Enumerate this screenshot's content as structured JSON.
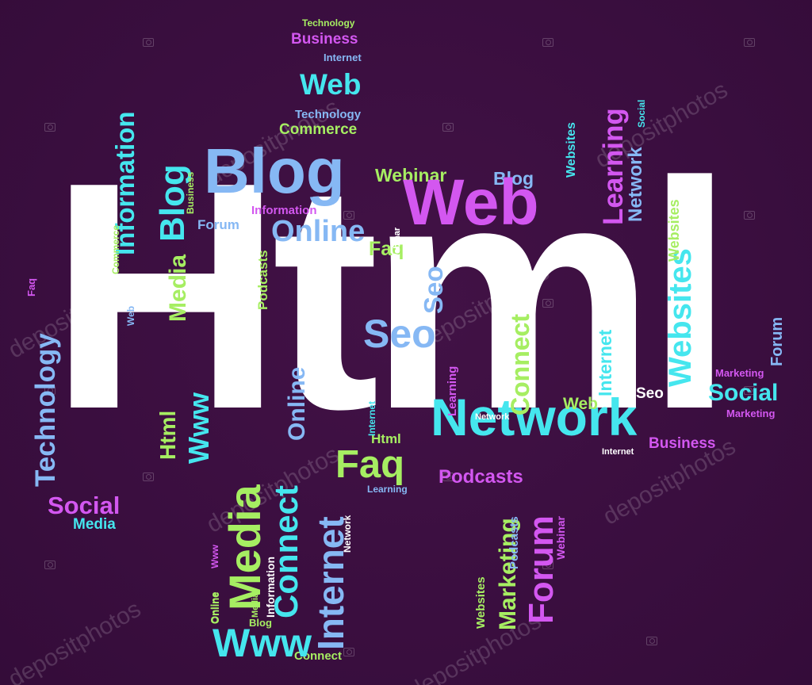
{
  "background_color": "#3a0e3f",
  "palette": {
    "white": "#ffffff",
    "cyan": "#45e6ee",
    "lightblue": "#86b8f4",
    "green": "#a6ee62",
    "magenta": "#d357f0",
    "lavender": "#c6a4ee"
  },
  "main_word": "Html",
  "words": {
    "w1": "Technology",
    "w2": "Business",
    "w3": "Internet",
    "w4": "Web",
    "w5": "Technology",
    "w6": "Commerce",
    "w7": "Blog",
    "w8": "Webinar",
    "w9": "Blog",
    "w10": "Web",
    "w11": "Forum",
    "w12": "Information",
    "w13": "Online",
    "w14": "Faq",
    "w15": "Seo",
    "w16": "Network",
    "w17": "Html",
    "w18": "Faq",
    "w19": "Podcasts",
    "w20": "Learning",
    "w21": "Business",
    "w22": "Internet",
    "w23": "Seo",
    "w24": "Web",
    "w25": "Network",
    "w26": "Social",
    "w27": "Marketing",
    "w28": "Marketing",
    "w29": "Social",
    "w30": "Media",
    "w31": "Blog",
    "w32": "Connect",
    "w33": "Www",
    "w34": "Information",
    "w35": "Blog",
    "w36": "Web",
    "w37": "Commerce",
    "w38": "Business",
    "w39": "Media",
    "w40": "Technology",
    "w41": "Faq",
    "w42": "Html",
    "w43": "Www",
    "w44": "Podcasts",
    "w45": "Online",
    "w46": "Seo",
    "w47": "Connect",
    "w48": "Learning",
    "w49": "Online",
    "w50": "Media",
    "w51": "Connect",
    "w52": "Internet",
    "w53": "Www",
    "w54": "Media",
    "w55": "Information",
    "w56": "Online",
    "w57": "Network",
    "w58": "Webinar",
    "w59": "Marketing",
    "w60": "Websites",
    "w61": "Forum",
    "w62": "Podcasts",
    "w63": "Webinar",
    "w64": "Websites",
    "w65": "Learning",
    "w66": "Network",
    "w67": "Social",
    "w68": "Websites",
    "w69": "Internet",
    "w70": "Connect",
    "w71": "Websites",
    "w72": "Forum",
    "w73": "Internet",
    "w74": "Webinar"
  },
  "watermark_text": "depositphotos"
}
